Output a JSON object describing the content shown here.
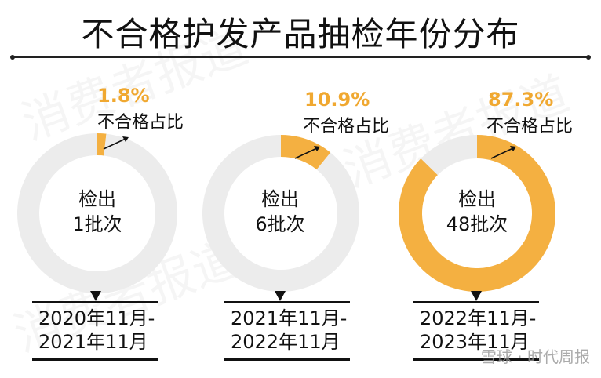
{
  "title": "不合格护发产品抽检年份分布",
  "watermark": "消费者报道",
  "footer_watermark": "雪球 · 时代周报",
  "colors": {
    "highlight": "#f4b041",
    "rest": "#ececec",
    "pct_text": "#f0a830"
  },
  "chart_data": [
    {
      "type": "pie",
      "donut": true,
      "period": [
        "2020年11月-",
        "2021年11月"
      ],
      "center_label": [
        "检出",
        "1批次"
      ],
      "value_label": "1.8%",
      "series_label": "不合格占比",
      "values": [
        1.8,
        98.2
      ]
    },
    {
      "type": "pie",
      "donut": true,
      "period": [
        "2021年11月-",
        "2022年11月"
      ],
      "center_label": [
        "检出",
        "6批次"
      ],
      "value_label": "10.9%",
      "series_label": "不合格占比",
      "values": [
        10.9,
        89.1
      ]
    },
    {
      "type": "pie",
      "donut": true,
      "period": [
        "2022年11月-",
        "2023年11月"
      ],
      "center_label": [
        "检出",
        "48批次"
      ],
      "value_label": "87.3%",
      "series_label": "不合格占比",
      "values": [
        87.3,
        12.7
      ]
    }
  ]
}
